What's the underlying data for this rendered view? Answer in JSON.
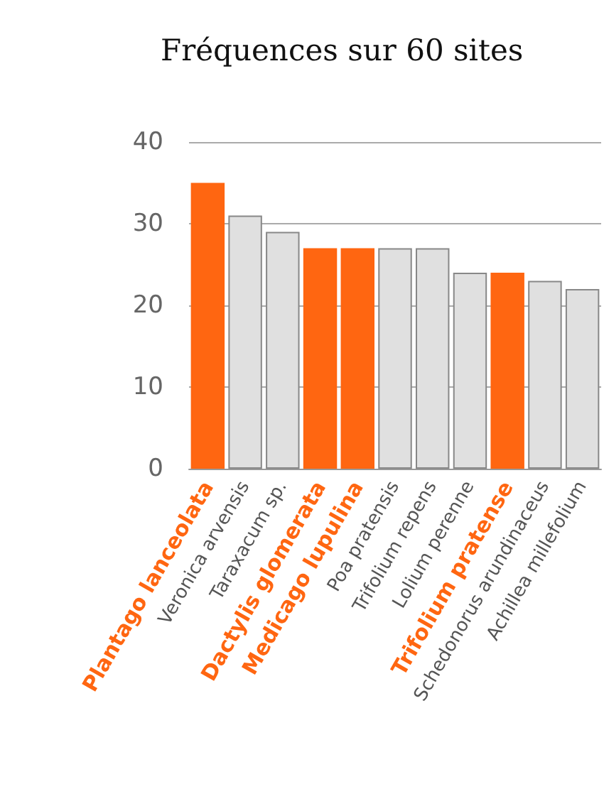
{
  "chart_data": {
    "type": "bar",
    "title": "Fréquences sur 60 sites",
    "categories": [
      "Plantago lanceolata",
      "Veronica arvensis",
      "Taraxacum sp.",
      "Dactylis glomerata",
      "Medicago lupulina",
      "Poa pratensis",
      "Trifolium repens",
      "Lolium perenne",
      "Trifolium pratense",
      "Schedonorus arundinaceus",
      "Achillea millefolium"
    ],
    "values": [
      35,
      31,
      29,
      27,
      27,
      27,
      27,
      24,
      24,
      23,
      22
    ],
    "colors": [
      "#ff6611",
      "#e0e0e0",
      "#e0e0e0",
      "#ff6611",
      "#ff6611",
      "#e0e0e0",
      "#e0e0e0",
      "#e0e0e0",
      "#ff6611",
      "#e0e0e0",
      "#e0e0e0"
    ],
    "ylim": [
      0,
      40
    ],
    "yticks": [
      0,
      10,
      20,
      30,
      40
    ],
    "grid": "y"
  }
}
